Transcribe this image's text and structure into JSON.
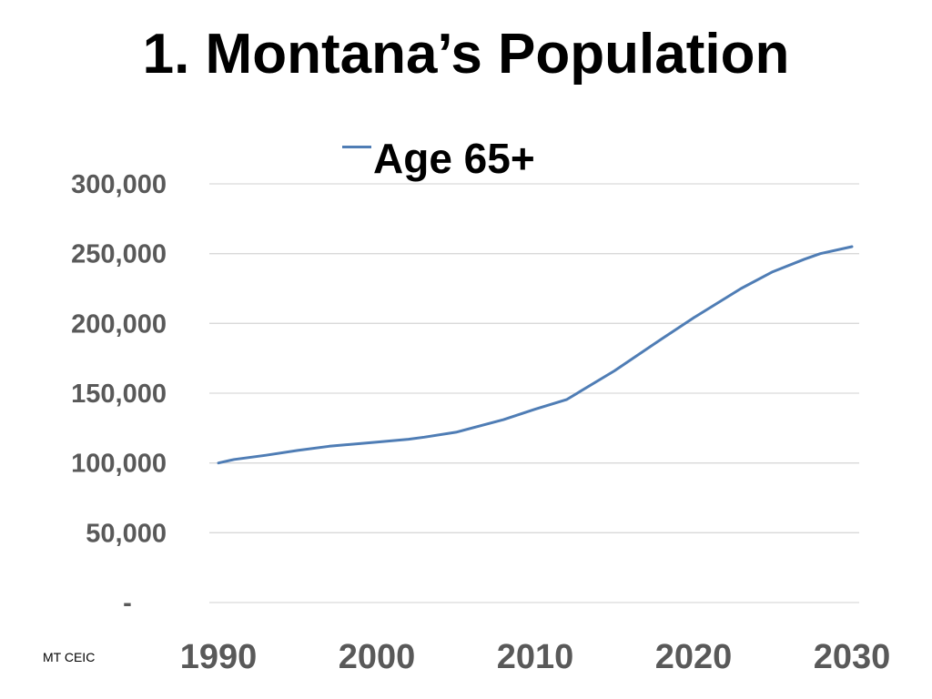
{
  "chart_data": {
    "type": "line",
    "title": "1. Montana’s Population",
    "legend": {
      "position": "top-center"
    },
    "series": [
      {
        "name": "Age 65+",
        "color": "#4F7DB5",
        "x": [
          1990,
          1991,
          1993,
          1995,
          1997,
          2000,
          2002,
          2003,
          2005,
          2008,
          2010,
          2012,
          2015,
          2018,
          2020,
          2023,
          2025,
          2027,
          2028,
          2030
        ],
        "values": [
          100000,
          102500,
          105500,
          109000,
          112000,
          115000,
          117000,
          118500,
          122000,
          131000,
          138500,
          145500,
          166000,
          189000,
          204000,
          225000,
          237000,
          246000,
          250000,
          255000
        ]
      }
    ],
    "x_ticks": [
      "1990",
      "2000",
      "2010",
      "2020",
      "2030"
    ],
    "x_tick_values": [
      1990,
      2000,
      2010,
      2020,
      2030
    ],
    "y_ticks": [
      "-",
      "50,000",
      "100,000",
      "150,000",
      "200,000",
      "250,000",
      "300,000"
    ],
    "y_tick_values": [
      0,
      50000,
      100000,
      150000,
      200000,
      250000,
      300000
    ],
    "xlim": [
      1990,
      2030
    ],
    "ylim": [
      0,
      300000
    ],
    "grid": true
  },
  "source": "MT CEIC"
}
